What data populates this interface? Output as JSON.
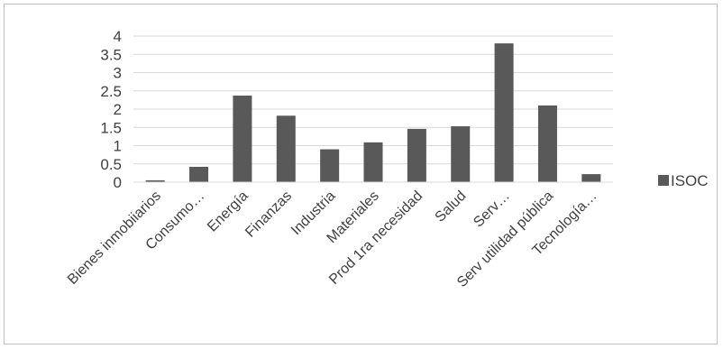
{
  "chart_data": {
    "type": "bar",
    "title": "",
    "xlabel": "",
    "ylabel": "",
    "categories": [
      "Bienes inmobiiarios",
      "Consumo…",
      "Energía",
      "Finanzas",
      "Industria",
      "Materiales",
      "Prod 1ra necesidad",
      "Salud",
      "Serv…",
      "Serv utilidad pública",
      "Tecnología…"
    ],
    "series": [
      {
        "name": "ISOC",
        "color": "#595959",
        "values": [
          0.05,
          0.42,
          2.37,
          1.82,
          0.9,
          1.09,
          1.46,
          1.53,
          3.8,
          2.1,
          0.22
        ]
      }
    ],
    "ylim": [
      0,
      4
    ],
    "yticks": [
      "0",
      "0.5",
      "1",
      "1.5",
      "2",
      "2.5",
      "3",
      "3.5",
      "4"
    ],
    "grid": true,
    "legend": "right"
  }
}
